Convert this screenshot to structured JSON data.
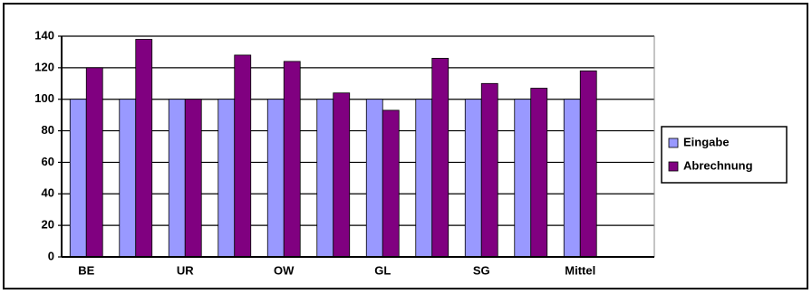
{
  "chart_data": {
    "type": "bar",
    "categories": [
      "BE",
      null,
      "UR",
      null,
      "OW",
      null,
      "GL",
      null,
      "SG",
      null,
      "Mittel",
      null
    ],
    "series": [
      {
        "name": "Eingabe",
        "color": "#9999ff",
        "values": [
          100,
          100,
          100,
          100,
          100,
          100,
          100,
          100,
          100,
          100,
          100,
          null
        ]
      },
      {
        "name": "Abrechnung",
        "color": "#800080",
        "values": [
          120,
          138,
          100,
          128,
          124,
          104,
          93,
          126,
          110,
          107,
          118,
          null
        ]
      }
    ],
    "ylim": [
      0,
      140
    ],
    "yticks": [
      0,
      20,
      40,
      60,
      80,
      100,
      120,
      140
    ],
    "grid": true,
    "legend": "right"
  }
}
